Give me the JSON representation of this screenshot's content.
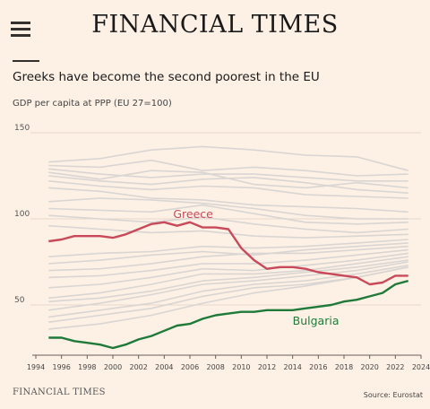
{
  "header": {
    "brand": "FINANCIAL TIMES",
    "menu_icon": "hamburger-menu-icon"
  },
  "footer": {
    "brand": "FINANCIAL TIMES",
    "source": "Source: Eurostat"
  },
  "chart_data": {
    "type": "line",
    "title": "Greeks have become the second poorest in the EU",
    "subtitle": "GDP per capita at PPP (EU 27=100)",
    "xlabel": "",
    "ylabel": "",
    "xlim": [
      1994,
      2024
    ],
    "ylim": [
      20,
      150
    ],
    "yticks": [
      50,
      100,
      150
    ],
    "xticks": [
      1994,
      1996,
      1998,
      2000,
      2002,
      2004,
      2006,
      2008,
      2010,
      2012,
      2014,
      2016,
      2018,
      2020,
      2022,
      2024
    ],
    "grid": true,
    "colors": {
      "highlight_greece": "#c84a5a",
      "highlight_bulgaria": "#1f7a3a",
      "background_series": "#d9d5d3",
      "grid": "#e6d8cb"
    },
    "series": [
      {
        "name": "Greece",
        "highlight": true,
        "color": "#c84a5a",
        "x": [
          1995,
          1996,
          1997,
          1998,
          1999,
          2000,
          2001,
          2002,
          2003,
          2004,
          2005,
          2006,
          2007,
          2008,
          2009,
          2010,
          2011,
          2012,
          2013,
          2014,
          2015,
          2016,
          2017,
          2018,
          2019,
          2020,
          2021,
          2022,
          2023
        ],
        "values": [
          87,
          88,
          90,
          90,
          90,
          89,
          91,
          94,
          97,
          98,
          96,
          98,
          95,
          95,
          94,
          83,
          76,
          71,
          72,
          72,
          71,
          69,
          68,
          67,
          66,
          62,
          63,
          67,
          67
        ]
      },
      {
        "name": "Bulgaria",
        "highlight": true,
        "color": "#1f7a3a",
        "x": [
          1995,
          1996,
          1997,
          1998,
          1999,
          2000,
          2001,
          2002,
          2003,
          2004,
          2005,
          2006,
          2007,
          2008,
          2009,
          2010,
          2011,
          2012,
          2013,
          2014,
          2015,
          2016,
          2017,
          2018,
          2019,
          2020,
          2021,
          2022,
          2023
        ],
        "values": [
          31,
          31,
          29,
          28,
          27,
          25,
          27,
          30,
          32,
          35,
          38,
          39,
          42,
          44,
          45,
          46,
          46,
          47,
          47,
          47,
          48,
          49,
          50,
          52,
          53,
          55,
          57,
          62,
          64
        ]
      },
      {
        "x": [
          1995,
          1999,
          2003,
          2007,
          2011,
          2015,
          2019,
          2023
        ],
        "values": [
          133,
          135,
          140,
          142,
          140,
          137,
          136,
          128
        ]
      },
      {
        "x": [
          1995,
          1999,
          2003,
          2007,
          2011,
          2015,
          2019,
          2023
        ],
        "values": [
          131,
          130,
          134,
          128,
          130,
          128,
          125,
          126
        ]
      },
      {
        "x": [
          1995,
          1999,
          2003,
          2007,
          2011,
          2015,
          2019,
          2023
        ],
        "values": [
          129,
          126,
          124,
          126,
          126,
          124,
          122,
          122
        ]
      },
      {
        "x": [
          1995,
          1999,
          2003,
          2007,
          2011,
          2015,
          2019,
          2023
        ],
        "values": [
          127,
          123,
          128,
          127,
          120,
          118,
          121,
          118
        ]
      },
      {
        "x": [
          1995,
          1999,
          2003,
          2007,
          2011,
          2015,
          2019,
          2023
        ],
        "values": [
          125,
          122,
          120,
          123,
          124,
          121,
          117,
          115
        ]
      },
      {
        "x": [
          1995,
          1999,
          2003,
          2007,
          2011,
          2015,
          2019,
          2023
        ],
        "values": [
          122,
          119,
          117,
          119,
          118,
          114,
          113,
          112
        ]
      },
      {
        "x": [
          1995,
          1999,
          2003,
          2007,
          2011,
          2015,
          2019,
          2023
        ],
        "values": [
          118,
          116,
          112,
          111,
          108,
          107,
          106,
          104
        ]
      },
      {
        "x": [
          1995,
          1999,
          2003,
          2007,
          2011,
          2015,
          2019,
          2023
        ],
        "values": [
          110,
          112,
          111,
          109,
          106,
          102,
          100,
          100
        ]
      },
      {
        "x": [
          1995,
          1999,
          2003,
          2007,
          2011,
          2015,
          2019,
          2023
        ],
        "values": [
          106,
          105,
          104,
          108,
          103,
          98,
          97,
          98
        ]
      },
      {
        "x": [
          1995,
          1999,
          2003,
          2007,
          2011,
          2015,
          2019,
          2023
        ],
        "values": [
          102,
          100,
          98,
          101,
          97,
          94,
          92,
          94
        ]
      },
      {
        "x": [
          1995,
          1999,
          2003,
          2007,
          2011,
          2015,
          2019,
          2023
        ],
        "values": [
          96,
          94,
          92,
          93,
          90,
          89,
          90,
          91
        ]
      },
      {
        "x": [
          1995,
          1999,
          2003,
          2007,
          2011,
          2015,
          2019,
          2023
        ],
        "values": [
          78,
          80,
          81,
          84,
          83,
          84,
          86,
          88
        ]
      },
      {
        "x": [
          1995,
          1999,
          2003,
          2007,
          2011,
          2015,
          2019,
          2023
        ],
        "values": [
          74,
          76,
          79,
          81,
          79,
          82,
          84,
          86
        ]
      },
      {
        "x": [
          1995,
          1999,
          2003,
          2007,
          2011,
          2015,
          2019,
          2023
        ],
        "values": [
          70,
          71,
          74,
          78,
          80,
          80,
          82,
          84
        ]
      },
      {
        "x": [
          1995,
          1999,
          2003,
          2007,
          2011,
          2015,
          2019,
          2023
        ],
        "values": [
          66,
          67,
          70,
          74,
          74,
          76,
          79,
          82
        ]
      },
      {
        "x": [
          1995,
          1999,
          2003,
          2007,
          2011,
          2015,
          2019,
          2023
        ],
        "values": [
          60,
          62,
          66,
          71,
          70,
          73,
          76,
          80
        ]
      },
      {
        "x": [
          1995,
          1999,
          2003,
          2007,
          2011,
          2015,
          2019,
          2023
        ],
        "values": [
          54,
          57,
          62,
          68,
          68,
          70,
          74,
          78
        ]
      },
      {
        "x": [
          1995,
          1999,
          2003,
          2007,
          2011,
          2015,
          2019,
          2023
        ],
        "values": [
          52,
          54,
          58,
          64,
          66,
          69,
          72,
          76
        ]
      },
      {
        "x": [
          1995,
          1999,
          2003,
          2007,
          2011,
          2015,
          2019,
          2023
        ],
        "values": [
          47,
          51,
          56,
          62,
          64,
          67,
          70,
          75
        ]
      },
      {
        "x": [
          1995,
          1999,
          2003,
          2007,
          2011,
          2015,
          2019,
          2023
        ],
        "values": [
          43,
          47,
          51,
          58,
          62,
          64,
          68,
          73
        ]
      },
      {
        "x": [
          1995,
          1999,
          2003,
          2007,
          2011,
          2015,
          2019,
          2023
        ],
        "values": [
          40,
          44,
          48,
          55,
          60,
          62,
          66,
          72
        ]
      },
      {
        "x": [
          1995,
          1999,
          2003,
          2007,
          2011,
          2015,
          2019,
          2023
        ],
        "values": [
          36,
          39,
          44,
          51,
          57,
          61,
          66,
          72
        ]
      }
    ]
  }
}
